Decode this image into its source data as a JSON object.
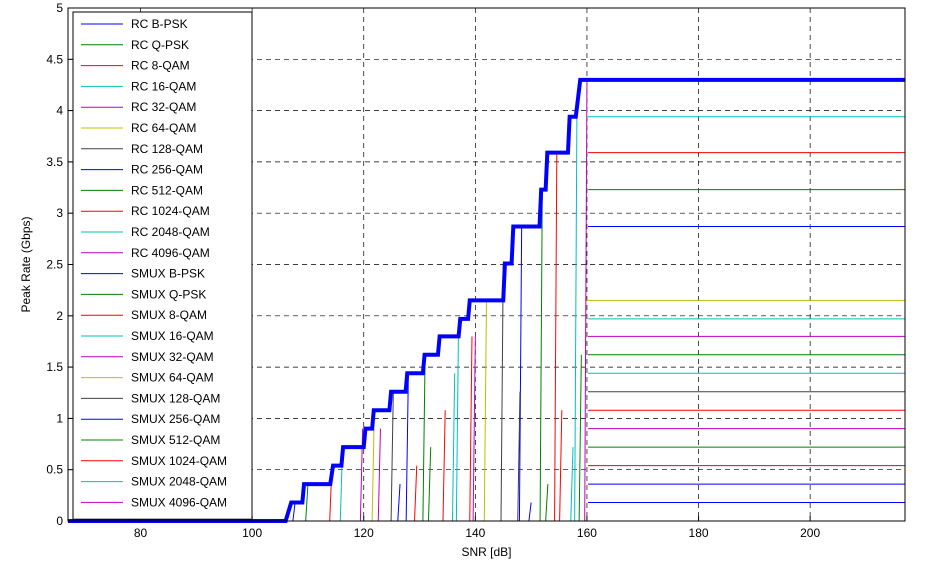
{
  "chart_data": {
    "type": "line",
    "title": "",
    "xlabel": "SNR [dB]",
    "ylabel": "Peak Rate (Gbps)",
    "xlim": [
      67,
      217
    ],
    "ylim": [
      0,
      5
    ],
    "xticks": [
      80,
      100,
      120,
      140,
      160,
      180,
      200
    ],
    "yticks": [
      0,
      0.5,
      1,
      1.5,
      2,
      2.5,
      3,
      3.5,
      4,
      4.5,
      5
    ],
    "grid": true,
    "legend_position": "top-left",
    "series": [
      {
        "name": "RC B-PSK",
        "color": "#0000ff",
        "threshold": 148.3,
        "value": 0.18
      },
      {
        "name": "RC Q-PSK",
        "color": "#008000",
        "threshold": 151.5,
        "value": 0.36
      },
      {
        "name": "RC 8-QAM",
        "color": "#ff0000",
        "threshold": 154.0,
        "value": 0.54
      },
      {
        "name": "RC 16-QAM",
        "color": "#00bfbf",
        "threshold": 156.6,
        "value": 0.72
      },
      {
        "name": "RC 32-QAM",
        "color": "#bf00bf",
        "threshold": 158.5,
        "value": 0.9
      },
      {
        "name": "RC 64-QAM",
        "color": "#bfbf00",
        "threshold": 159.5,
        "value": 1.08
      },
      {
        "name": "RC 128-QAM",
        "color": "#404040",
        "threshold": 159.8,
        "value": 1.26
      },
      {
        "name": "RC 256-QAM",
        "color": "#0000ff",
        "threshold": 148.3,
        "value": 2.87
      },
      {
        "name": "RC 512-QAM",
        "color": "#008000",
        "threshold": 152.0,
        "value": 3.23
      },
      {
        "name": "RC 1024-QAM",
        "color": "#ff0000",
        "threshold": 154.6,
        "value": 3.59
      },
      {
        "name": "RC 2048-QAM",
        "color": "#00bfbf",
        "threshold": 158.2,
        "value": 3.94
      },
      {
        "name": "RC 4096-QAM",
        "color": "#bf00bf",
        "threshold": 160.0,
        "value": 4.3
      },
      {
        "name": "SMUX B-PSK",
        "color": "#0000ff",
        "threshold": 127.5,
        "value": 0.18
      },
      {
        "name": "SMUX Q-PSK",
        "color": "#008000",
        "threshold": 130.6,
        "value": 0.36
      },
      {
        "name": "SMUX 8-QAM",
        "color": "#ff0000",
        "threshold": 133.3,
        "value": 0.54
      },
      {
        "name": "SMUX 16-QAM",
        "color": "#00bfbf",
        "threshold": 135.8,
        "value": 0.72
      },
      {
        "name": "SMUX 32-QAM",
        "color": "#bf00bf",
        "threshold": 139.0,
        "value": 1.8
      },
      {
        "name": "SMUX 64-QAM",
        "color": "#bfbf00",
        "threshold": 142.0,
        "value": 2.15
      },
      {
        "name": "SMUX 128-QAM",
        "color": "#404040",
        "threshold": 145.0,
        "value": 1.44
      },
      {
        "name": "SMUX 256-QAM",
        "color": "#0000ff",
        "threshold": 128.0,
        "value": 1.44
      },
      {
        "name": "SMUX 512-QAM",
        "color": "#008000",
        "threshold": 131.0,
        "value": 1.62
      },
      {
        "name": "SMUX 1024-QAM",
        "color": "#ff0000",
        "threshold": 134.6,
        "value": 1.08
      },
      {
        "name": "SMUX 2048-QAM",
        "color": "#00bfbf",
        "threshold": 137.0,
        "value": 1.97
      },
      {
        "name": "SMUX 4096-QAM",
        "color": "#bf00bf",
        "threshold": 140.0,
        "value": 0.9
      }
    ],
    "envelope": {
      "name": "",
      "color": "#0000ff",
      "points": [
        [
          67,
          0
        ],
        [
          106,
          0
        ],
        [
          107,
          0.18
        ],
        [
          109,
          0.18
        ],
        [
          109.3,
          0.36
        ],
        [
          114,
          0.36
        ],
        [
          114.5,
          0.54
        ],
        [
          116,
          0.54
        ],
        [
          116.3,
          0.72
        ],
        [
          120,
          0.72
        ],
        [
          120.3,
          0.9
        ],
        [
          121.5,
          0.9
        ],
        [
          121.8,
          1.08
        ],
        [
          124.6,
          1.08
        ],
        [
          124.9,
          1.26
        ],
        [
          127.5,
          1.26
        ],
        [
          127.8,
          1.44
        ],
        [
          130.6,
          1.44
        ],
        [
          130.9,
          1.62
        ],
        [
          133.3,
          1.62
        ],
        [
          133.6,
          1.8
        ],
        [
          137.0,
          1.8
        ],
        [
          137.3,
          1.97
        ],
        [
          138.7,
          1.97
        ],
        [
          139.0,
          2.15
        ],
        [
          145.0,
          2.15
        ],
        [
          145.3,
          2.51
        ],
        [
          146.5,
          2.51
        ],
        [
          146.8,
          2.87
        ],
        [
          151.5,
          2.87
        ],
        [
          151.8,
          3.23
        ],
        [
          152.6,
          3.23
        ],
        [
          152.9,
          3.59
        ],
        [
          156.6,
          3.59
        ],
        [
          156.9,
          3.94
        ],
        [
          158.0,
          3.94
        ],
        [
          158.8,
          4.3
        ],
        [
          217,
          4.3
        ]
      ]
    },
    "staircase_ticks": [
      [
        107.7,
        0.18,
        "#0000ff"
      ],
      [
        110.0,
        0.36,
        "#008000"
      ],
      [
        114.3,
        0.54,
        "#ff0000"
      ],
      [
        116.2,
        0.72,
        "#00bfbf"
      ],
      [
        119.8,
        0.9,
        "#bf00bf"
      ],
      [
        121.9,
        1.08,
        "#bfbf00"
      ],
      [
        125.3,
        1.26,
        "#404040"
      ],
      [
        128.0,
        1.44,
        "#0000ff"
      ],
      [
        131.0,
        1.62,
        "#008000"
      ],
      [
        134.6,
        1.08,
        "#ff0000"
      ],
      [
        137.0,
        1.97,
        "#00bfbf"
      ],
      [
        140.0,
        1.8,
        "#bf00bf"
      ],
      [
        142.0,
        2.15,
        "#bfbf00"
      ],
      [
        145.0,
        2.51,
        "#404040"
      ],
      [
        148.3,
        2.87,
        "#0000ff"
      ],
      [
        152.0,
        3.23,
        "#008000"
      ],
      [
        154.6,
        3.59,
        "#ff0000"
      ],
      [
        158.2,
        3.94,
        "#00bfbf"
      ],
      [
        160.0,
        4.3,
        "#bf00bf"
      ],
      [
        123.0,
        0.9,
        "#bf00bf"
      ],
      [
        126.5,
        0.36,
        "#0000ff"
      ],
      [
        129.5,
        0.54,
        "#ff0000"
      ],
      [
        132.0,
        0.72,
        "#008000"
      ],
      [
        136.3,
        1.44,
        "#00bfbf"
      ],
      [
        139.4,
        1.8,
        "#ff0000"
      ],
      [
        148.0,
        1.26,
        "#404040"
      ],
      [
        150.0,
        0.18,
        "#0000ff"
      ],
      [
        153.0,
        0.36,
        "#008000"
      ],
      [
        155.5,
        1.08,
        "#ff0000"
      ],
      [
        157.5,
        0.72,
        "#00bfbf"
      ],
      [
        159.0,
        1.62,
        "#008000"
      ]
    ],
    "right_levels": [
      [
        4.3,
        "#0000ff"
      ],
      [
        3.94,
        "#00bfbf"
      ],
      [
        3.59,
        "#ff0000"
      ],
      [
        3.23,
        "#008000"
      ],
      [
        2.87,
        "#0000ff"
      ],
      [
        2.15,
        "#bfbf00"
      ],
      [
        1.97,
        "#00bfbf"
      ],
      [
        1.8,
        "#bf00bf"
      ],
      [
        1.62,
        "#008000"
      ],
      [
        1.44,
        "#00bfbf"
      ],
      [
        1.26,
        "#404040"
      ],
      [
        1.08,
        "#ff0000"
      ],
      [
        0.9,
        "#bf00bf"
      ],
      [
        0.72,
        "#008000"
      ],
      [
        0.54,
        "#ff0000"
      ],
      [
        0.36,
        "#0000ff"
      ],
      [
        0.18,
        "#0000ff"
      ]
    ]
  }
}
